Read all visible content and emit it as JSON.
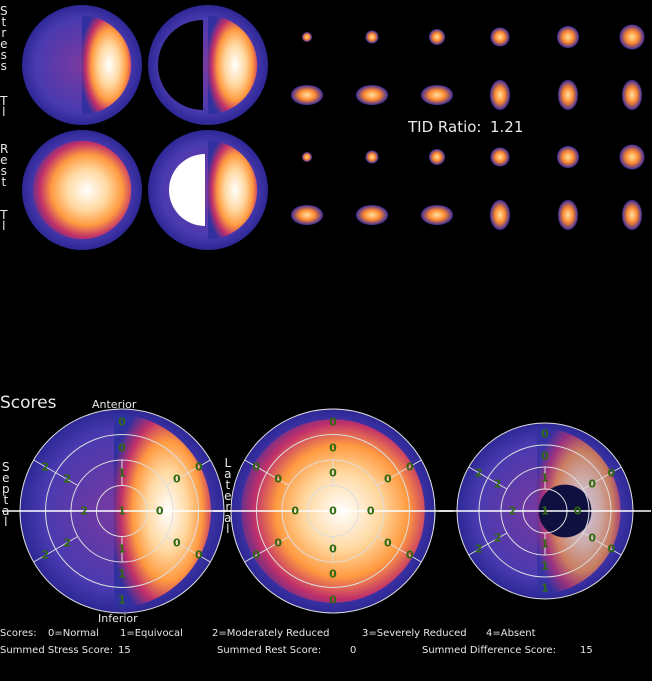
{
  "side_labels": {
    "stress": "Stress",
    "stress_isotope": "Tl",
    "rest": "Rest",
    "rest_isotope": "Tl"
  },
  "tid": {
    "label": "TID Ratio:",
    "value": 1.21
  },
  "scores_title": "Scores",
  "orientation": {
    "anterior": "Anterior",
    "septal": "Septal",
    "lateral": "Lateral",
    "inferior": "Inferior"
  },
  "polar_maps": [
    {
      "segments": [
        0,
        2,
        2,
        1,
        0,
        0,
        0,
        2,
        2,
        1,
        0,
        0,
        1,
        2,
        1,
        0,
        1
      ]
    },
    {
      "segments": [
        0,
        0,
        0,
        0,
        0,
        0,
        0,
        0,
        0,
        0,
        0,
        0,
        0,
        0,
        0,
        0,
        0
      ]
    },
    {
      "segments": [
        0,
        2,
        2,
        1,
        0,
        0,
        0,
        2,
        2,
        1,
        0,
        0,
        1,
        2,
        1,
        0,
        1
      ]
    }
  ],
  "legend": {
    "title": "Scores:",
    "items": [
      "0=Normal",
      "1=Equivocal",
      "2=Moderately Reduced",
      "3=Severely Reduced",
      "4=Absent"
    ]
  },
  "summed": [
    {
      "label": "Summed Stress Score:",
      "value": 15
    },
    {
      "label": "Summed Rest Score:",
      "value": 0
    },
    {
      "label": "Summed Difference Score:",
      "value": 15
    }
  ]
}
